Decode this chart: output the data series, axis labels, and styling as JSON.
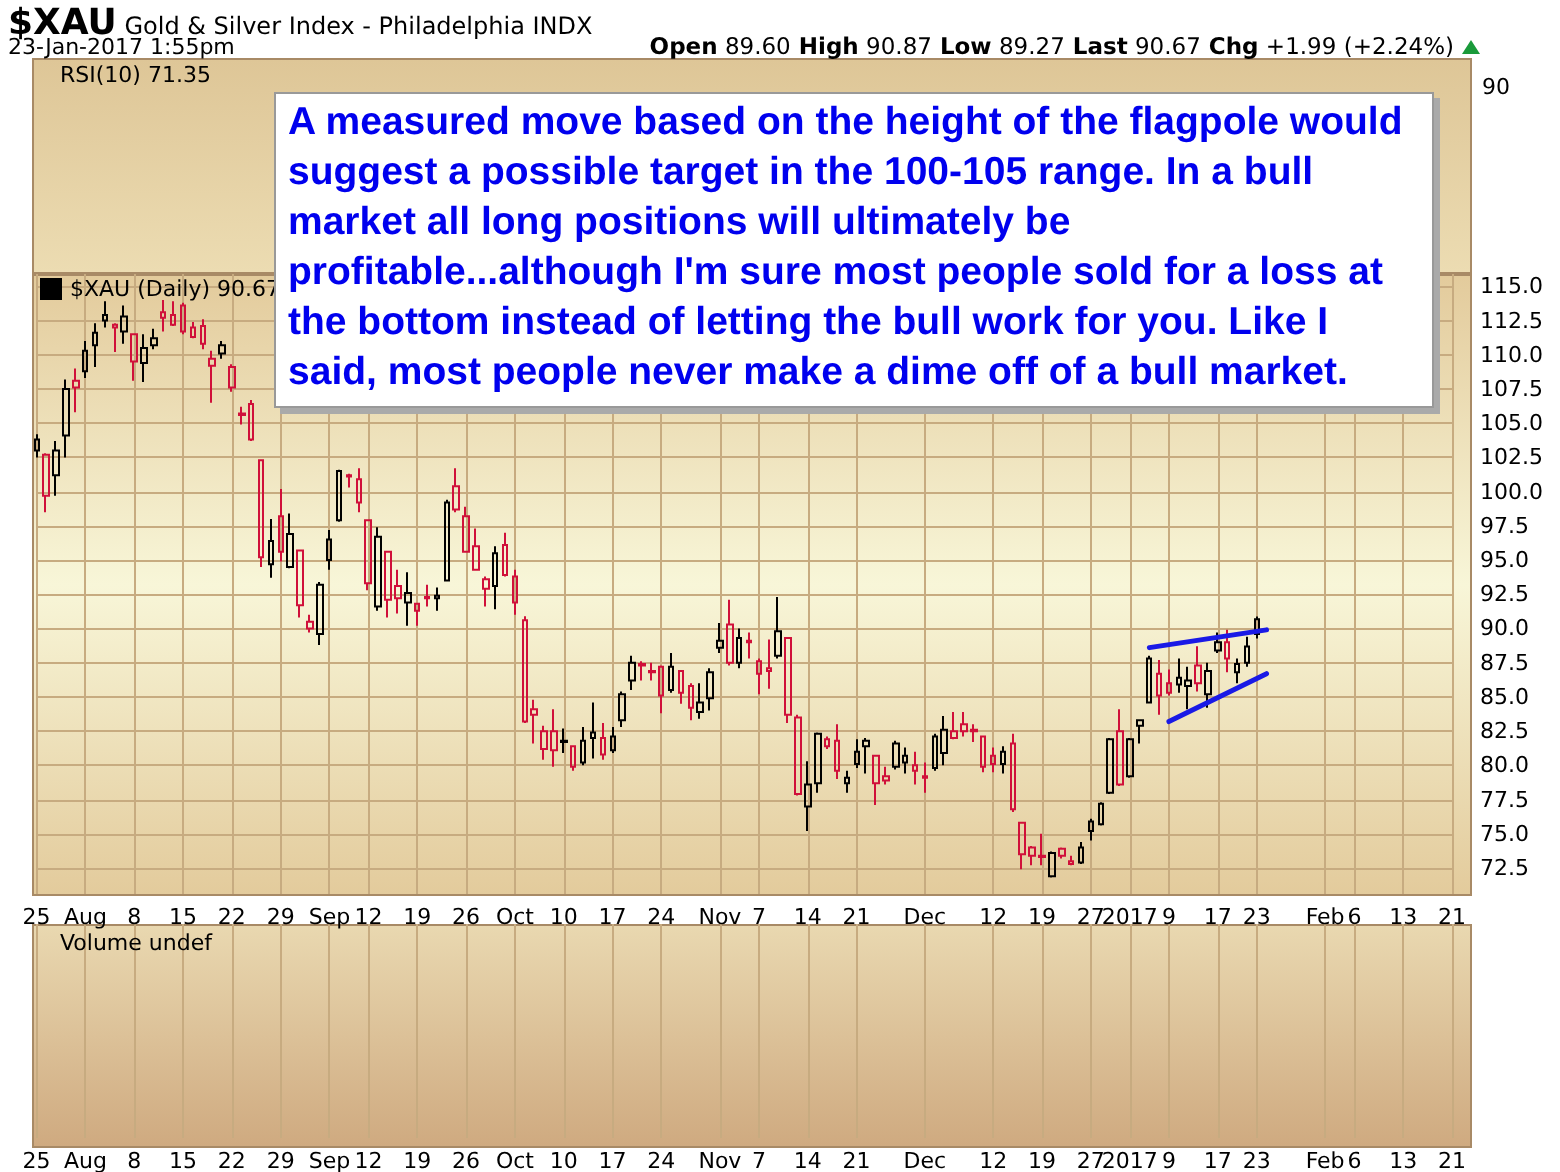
{
  "chart_data": {
    "type": "candlestick",
    "title": "$XAU Gold & Silver Index - Philadelphia INDX",
    "subtitle": "23-Jan-2017 1:55pm",
    "annotations": [
      "Open 89.60 High 90.87 Low 89.27 Last 90.67 Chg +1.99 (+2.24%)",
      "RSI(10) 71.35",
      "90",
      "Volume undef",
      "A measured move based on the height of the flagpole would suggest a possible target in the 100-105 range. In a bull market all long positions will ultimately be profitable...although I'm sure most people sold for a loss at the bottom instead of letting the bull work for you. Like I said, most people never make a dime off of a bull market."
    ],
    "categories": [
      "25",
      null,
      null,
      null,
      null,
      "Aug",
      null,
      null,
      null,
      null,
      "8",
      null,
      null,
      null,
      null,
      "15",
      null,
      null,
      null,
      null,
      "22",
      null,
      null,
      null,
      null,
      "29",
      null,
      null,
      null,
      null,
      "Sep",
      null,
      null,
      null,
      "12",
      null,
      null,
      null,
      null,
      "19",
      null,
      null,
      null,
      null,
      "26",
      null,
      null,
      null,
      null,
      "Oct",
      null,
      null,
      null,
      null,
      "10",
      null,
      null,
      null,
      null,
      "17",
      null,
      null,
      null,
      null,
      "24",
      null,
      null,
      null,
      null,
      null,
      "Nov",
      null,
      null,
      null,
      "7",
      null,
      null,
      null,
      null,
      "14",
      null,
      null,
      null,
      null,
      "21",
      null,
      null,
      null,
      null,
      null,
      null,
      "Dec",
      null,
      null,
      null,
      null,
      null,
      null,
      "12",
      null,
      null,
      null,
      null,
      "19",
      null,
      null,
      null,
      null,
      "27",
      null,
      null,
      null,
      "2017",
      null,
      null,
      null,
      "9",
      null,
      null,
      null,
      null,
      "17",
      null,
      null,
      null,
      "23",
      null,
      null,
      null,
      null,
      null,
      null,
      "Feb",
      null,
      null,
      "6",
      null,
      null,
      null,
      null,
      "13",
      null,
      null,
      null,
      null,
      "21"
    ],
    "series": [
      {
        "name": "$XAU (Daily) 90.67",
        "ohlc": [
          [
            103.0,
            104.2,
            102.5,
            103.8
          ],
          [
            102.7,
            102.8,
            98.5,
            99.7
          ],
          [
            101.2,
            103.7,
            99.7,
            103.0
          ],
          [
            104.1,
            108.2,
            102.5,
            107.5
          ],
          [
            108.1,
            109.0,
            105.8,
            107.6
          ],
          [
            108.8,
            111.0,
            108.3,
            110.3
          ],
          [
            110.7,
            112.3,
            109.1,
            111.6
          ],
          [
            112.5,
            113.9,
            112.0,
            112.9
          ],
          [
            112.2,
            112.3,
            110.2,
            112.0
          ],
          [
            111.7,
            113.6,
            110.8,
            112.8
          ],
          [
            111.5,
            111.5,
            108.1,
            109.5
          ],
          [
            109.4,
            111.5,
            108.0,
            110.5
          ],
          [
            110.7,
            111.9,
            110.4,
            111.2
          ],
          [
            113.1,
            114.0,
            111.7,
            112.7
          ],
          [
            112.9,
            113.9,
            112.1,
            112.2
          ],
          [
            113.6,
            113.8,
            111.5,
            111.7
          ],
          [
            112.0,
            112.4,
            111.2,
            111.3
          ],
          [
            112.1,
            112.6,
            110.4,
            110.8
          ],
          [
            109.7,
            110.3,
            106.5,
            109.2
          ],
          [
            110.1,
            111.0,
            109.7,
            110.7
          ],
          [
            109.1,
            109.3,
            107.3,
            107.6
          ],
          [
            105.7,
            106.2,
            104.9,
            105.6
          ],
          [
            106.4,
            106.7,
            103.7,
            103.8
          ],
          [
            102.3,
            102.3,
            94.5,
            95.2
          ],
          [
            94.7,
            98.0,
            93.7,
            96.4
          ],
          [
            98.2,
            100.2,
            94.9,
            95.6
          ],
          [
            94.5,
            98.4,
            94.4,
            96.9
          ],
          [
            95.7,
            95.7,
            90.8,
            91.7
          ],
          [
            90.5,
            91.0,
            89.7,
            90.0
          ],
          [
            89.6,
            93.4,
            88.8,
            93.2
          ],
          [
            95.0,
            97.2,
            94.3,
            96.5
          ],
          [
            97.9,
            101.6,
            97.8,
            101.5
          ],
          [
            101.2,
            101.3,
            100.3,
            101.1
          ],
          [
            100.9,
            101.7,
            98.5,
            99.2
          ],
          [
            97.9,
            97.9,
            92.8,
            93.3
          ],
          [
            91.6,
            97.4,
            91.3,
            96.7
          ],
          [
            95.6,
            95.6,
            90.8,
            92.1
          ],
          [
            93.1,
            94.3,
            91.1,
            92.2
          ],
          [
            91.9,
            94.1,
            90.2,
            92.6
          ],
          [
            91.8,
            91.8,
            90.2,
            91.3
          ],
          [
            92.3,
            93.2,
            91.6,
            92.2
          ],
          [
            92.2,
            93.0,
            91.3,
            92.4
          ],
          [
            93.5,
            99.4,
            93.5,
            99.2
          ],
          [
            100.4,
            101.7,
            98.5,
            98.7
          ],
          [
            98.2,
            98.9,
            95.6,
            95.6
          ],
          [
            96.0,
            97.3,
            94.3,
            94.3
          ],
          [
            93.6,
            93.8,
            91.6,
            92.9
          ],
          [
            93.1,
            96.0,
            91.4,
            95.5
          ],
          [
            96.1,
            97.0,
            93.8,
            93.9
          ],
          [
            93.8,
            94.3,
            91.0,
            91.9
          ],
          [
            90.6,
            90.9,
            83.1,
            83.2
          ],
          [
            84.1,
            84.8,
            81.6,
            83.7
          ],
          [
            82.5,
            82.9,
            80.4,
            81.2
          ],
          [
            82.5,
            84.1,
            79.9,
            81.1
          ],
          [
            81.7,
            82.7,
            80.9,
            81.8
          ],
          [
            81.4,
            81.4,
            79.6,
            79.9
          ],
          [
            80.2,
            82.8,
            80.0,
            81.8
          ],
          [
            82.0,
            84.6,
            80.5,
            82.4
          ],
          [
            82.0,
            83.1,
            80.4,
            80.8
          ],
          [
            81.1,
            82.8,
            80.9,
            82.1
          ],
          [
            83.3,
            85.4,
            82.8,
            85.2
          ],
          [
            86.2,
            88.0,
            85.5,
            87.5
          ],
          [
            87.4,
            87.6,
            86.2,
            87.3
          ],
          [
            86.9,
            87.5,
            86.2,
            86.8
          ],
          [
            87.2,
            87.3,
            83.8,
            85.1
          ],
          [
            85.5,
            88.2,
            85.3,
            87.2
          ],
          [
            86.9,
            86.9,
            84.5,
            85.3
          ],
          [
            85.8,
            86.0,
            83.3,
            84.2
          ],
          [
            83.9,
            86.0,
            83.4,
            84.6
          ],
          [
            84.9,
            87.1,
            84.0,
            86.8
          ],
          [
            88.6,
            90.4,
            88.2,
            89.1
          ],
          [
            90.3,
            92.1,
            87.3,
            87.5
          ],
          [
            87.5,
            90.0,
            87.1,
            89.3
          ],
          [
            89.1,
            89.7,
            87.8,
            89.0
          ],
          [
            87.6,
            87.8,
            85.2,
            86.7
          ],
          [
            87.1,
            89.2,
            85.6,
            86.9
          ],
          [
            88.0,
            92.3,
            87.8,
            89.8
          ],
          [
            89.3,
            89.3,
            83.1,
            83.7
          ],
          [
            83.5,
            83.7,
            77.8,
            77.9
          ],
          [
            77.0,
            80.3,
            75.2,
            78.6
          ],
          [
            78.7,
            82.4,
            78.0,
            82.3
          ],
          [
            81.9,
            82.1,
            81.2,
            81.4
          ],
          [
            81.8,
            83.0,
            79.0,
            79.6
          ],
          [
            78.7,
            79.6,
            78.0,
            79.1
          ],
          [
            80.1,
            81.9,
            79.8,
            81.0
          ],
          [
            81.4,
            82.0,
            79.4,
            81.8
          ],
          [
            80.7,
            80.7,
            77.1,
            78.7
          ],
          [
            79.2,
            79.9,
            78.6,
            78.9
          ],
          [
            79.9,
            81.8,
            79.7,
            81.6
          ],
          [
            80.2,
            81.3,
            79.4,
            80.7
          ],
          [
            80.0,
            81.0,
            78.6,
            79.6
          ],
          [
            79.2,
            80.2,
            78.0,
            79.1
          ],
          [
            79.8,
            82.3,
            79.6,
            82.1
          ],
          [
            80.9,
            83.6,
            80.0,
            82.6
          ],
          [
            82.5,
            83.9,
            81.9,
            82.0
          ],
          [
            83.0,
            83.9,
            82.1,
            82.5
          ],
          [
            82.6,
            83.0,
            81.7,
            82.5
          ],
          [
            82.1,
            82.1,
            79.5,
            79.9
          ],
          [
            80.7,
            81.3,
            79.5,
            80.1
          ],
          [
            80.1,
            81.4,
            79.4,
            81.0
          ],
          [
            81.6,
            82.3,
            76.6,
            76.8
          ],
          [
            75.8,
            75.8,
            72.4,
            73.5
          ],
          [
            74.0,
            74.1,
            72.7,
            73.4
          ],
          [
            73.4,
            75.0,
            72.7,
            73.3
          ],
          [
            71.9,
            73.7,
            71.8,
            73.6
          ],
          [
            73.9,
            74.0,
            73.2,
            73.4
          ],
          [
            73.0,
            73.4,
            72.7,
            72.8
          ],
          [
            72.9,
            74.4,
            72.8,
            74.0
          ],
          [
            75.2,
            76.1,
            74.5,
            75.9
          ],
          [
            75.7,
            77.3,
            75.6,
            77.2
          ],
          [
            78.0,
            82.0,
            77.9,
            81.9
          ],
          [
            82.5,
            84.1,
            78.5,
            78.6
          ],
          [
            79.2,
            82.0,
            79.1,
            81.9
          ],
          [
            82.9,
            83.3,
            81.6,
            83.3
          ],
          [
            84.6,
            88.0,
            84.6,
            87.8
          ],
          [
            86.7,
            87.7,
            83.7,
            85.1
          ],
          [
            86.0,
            87.0,
            85.1,
            85.3
          ],
          [
            85.9,
            87.8,
            85.3,
            86.4
          ],
          [
            85.8,
            87.2,
            84.1,
            86.2
          ],
          [
            87.3,
            88.7,
            85.4,
            86.0
          ],
          [
            85.2,
            87.5,
            84.2,
            86.9
          ],
          [
            88.4,
            89.7,
            88.2,
            89.0
          ],
          [
            89.0,
            89.9,
            86.8,
            87.8
          ],
          [
            86.8,
            87.8,
            86.0,
            87.4
          ],
          [
            87.5,
            89.4,
            87.2,
            88.68
          ],
          [
            89.6,
            90.87,
            89.27,
            90.67
          ],
          null,
          null,
          null,
          null,
          null,
          null,
          null,
          null,
          null,
          null,
          null,
          null,
          null,
          null,
          null,
          null,
          null,
          null,
          null,
          null
        ],
        "colors": [
          "#000000",
          "#d0103a",
          "#000000",
          "#000000",
          "#d0103a",
          "#000000",
          "#000000",
          "#000000",
          "#d0103a",
          "#000000",
          "#d0103a",
          "#000000",
          "#000000",
          "#d0103a",
          "#d0103a",
          "#d0103a",
          "#d0103a",
          "#d0103a",
          "#d0103a",
          "#000000",
          "#d0103a",
          "#d0103a",
          "#d0103a",
          "#d0103a",
          "#000000",
          "#d0103a",
          "#000000",
          "#d0103a",
          "#d0103a",
          "#000000",
          "#000000",
          "#000000",
          "#d0103a",
          "#d0103a",
          "#d0103a",
          "#000000",
          "#d0103a",
          "#d0103a",
          "#000000",
          "#d0103a",
          "#d0103a",
          "#000000",
          "#000000",
          "#d0103a",
          "#d0103a",
          "#d0103a",
          "#d0103a",
          "#000000",
          "#d0103a",
          "#d0103a",
          "#d0103a",
          "#d0103a",
          "#d0103a",
          "#d0103a",
          "#000000",
          "#d0103a",
          "#000000",
          "#000000",
          "#d0103a",
          "#000000",
          "#000000",
          "#000000",
          "#d0103a",
          "#d0103a",
          "#d0103a",
          "#000000",
          "#d0103a",
          "#d0103a",
          "#000000",
          "#000000",
          "#000000",
          "#d0103a",
          "#000000",
          "#d0103a",
          "#d0103a",
          "#d0103a",
          "#000000",
          "#d0103a",
          "#d0103a",
          "#000000",
          "#000000",
          "#d0103a",
          "#d0103a",
          "#000000",
          "#000000",
          "#000000",
          "#d0103a",
          "#d0103a",
          "#000000",
          "#000000",
          "#d0103a",
          "#d0103a",
          "#000000",
          "#000000",
          "#d0103a",
          "#d0103a",
          "#d0103a",
          "#d0103a",
          "#d0103a",
          "#000000",
          "#d0103a",
          "#d0103a",
          "#d0103a",
          "#d0103a",
          "#000000",
          "#d0103a",
          "#d0103a",
          "#000000",
          "#000000",
          "#000000",
          "#000000",
          "#d0103a",
          "#000000",
          "#000000",
          "#000000",
          "#d0103a",
          "#d0103a",
          "#000000",
          "#000000",
          "#d0103a",
          "#000000",
          "#000000",
          "#d0103a",
          "#000000",
          "#000000",
          "#000000",
          null,
          null,
          null,
          null,
          null,
          null,
          null,
          null,
          null,
          null,
          null,
          null,
          null,
          null,
          null,
          null,
          null,
          null,
          null,
          null
        ]
      },
      {
        "type": "line",
        "color": "#1a1ae6",
        "values": [
          null,
          null,
          null,
          null,
          null,
          null,
          null,
          null,
          null,
          null,
          null,
          null,
          null,
          null,
          null,
          null,
          null,
          null,
          null,
          null,
          null,
          null,
          null,
          null,
          null,
          null,
          null,
          null,
          null,
          null,
          null,
          null,
          null,
          null,
          null,
          null,
          null,
          null,
          null,
          null,
          null,
          null,
          null,
          null,
          null,
          null,
          null,
          null,
          null,
          null,
          null,
          null,
          null,
          null,
          null,
          null,
          null,
          null,
          null,
          null,
          null,
          null,
          null,
          null,
          null,
          null,
          null,
          null,
          null,
          null,
          null,
          null,
          null,
          null,
          null,
          null,
          null,
          null,
          null,
          null,
          null,
          null,
          null,
          null,
          null,
          null,
          null,
          null,
          null,
          null,
          null,
          null,
          null,
          null,
          null,
          null,
          null,
          null,
          null,
          null,
          null,
          null,
          null,
          null,
          null,
          null,
          null,
          null,
          null,
          null,
          null,
          null,
          null,
          null,
          88.6,
          null,
          null,
          null,
          null,
          null,
          null,
          null,
          null,
          null,
          null,
          null,
          89.9,
          null,
          null,
          null,
          null,
          null,
          null,
          null,
          null,
          null,
          null,
          null,
          null,
          null,
          null,
          null,
          null,
          null,
          null,
          null
        ]
      },
      {
        "type": "line",
        "color": "#1a1ae6",
        "values": [
          null,
          null,
          null,
          null,
          null,
          null,
          null,
          null,
          null,
          null,
          null,
          null,
          null,
          null,
          null,
          null,
          null,
          null,
          null,
          null,
          null,
          null,
          null,
          null,
          null,
          null,
          null,
          null,
          null,
          null,
          null,
          null,
          null,
          null,
          null,
          null,
          null,
          null,
          null,
          null,
          null,
          null,
          null,
          null,
          null,
          null,
          null,
          null,
          null,
          null,
          null,
          null,
          null,
          null,
          null,
          null,
          null,
          null,
          null,
          null,
          null,
          null,
          null,
          null,
          null,
          null,
          null,
          null,
          null,
          null,
          null,
          null,
          null,
          null,
          null,
          null,
          null,
          null,
          null,
          null,
          null,
          null,
          null,
          null,
          null,
          null,
          null,
          null,
          null,
          null,
          null,
          null,
          null,
          null,
          null,
          null,
          null,
          null,
          null,
          null,
          null,
          null,
          null,
          null,
          null,
          null,
          null,
          null,
          null,
          null,
          null,
          null,
          null,
          null,
          null,
          null,
          83.2,
          null,
          null,
          null,
          null,
          null,
          null,
          null,
          null,
          null,
          86.7,
          null,
          null,
          null,
          null,
          null,
          null,
          null,
          null,
          null,
          null,
          null,
          null,
          null,
          null,
          null,
          null,
          null,
          null,
          null
        ]
      }
    ],
    "ylim": [
      70.6,
      115.9
    ],
    "yticks": [
      72.5,
      {
        "value": 75,
        "label": "75.0"
      },
      77.5,
      {
        "value": 80,
        "label": "80.0"
      },
      82.5,
      {
        "value": 85,
        "label": "85.0"
      },
      87.5,
      {
        "value": 90,
        "label": "90.0"
      },
      92.5,
      {
        "value": 95,
        "label": "95.0"
      },
      97.5,
      {
        "value": 100,
        "label": "100.0"
      },
      102.5,
      {
        "value": 105,
        "label": "105.0"
      },
      107.5,
      {
        "value": 110,
        "label": "110.0"
      },
      112.5,
      {
        "value": 115,
        "label": "115.0"
      }
    ],
    "grid": true,
    "legend": "top left"
  }
}
